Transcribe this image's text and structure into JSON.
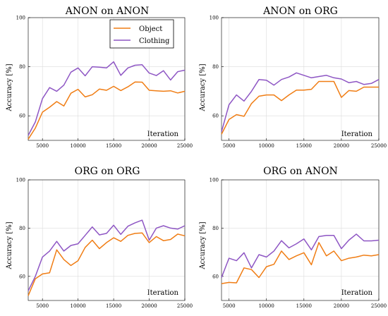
{
  "chart_data": [
    {
      "type": "line",
      "title": "ANON on ANON",
      "xlabel": "Iteration",
      "ylabel": "Accuracy [%]",
      "xlim": [
        3000,
        25000
      ],
      "ylim": [
        50,
        100
      ],
      "xticks": [
        5000,
        10000,
        15000,
        20000,
        25000
      ],
      "yticks": [
        60,
        80,
        100
      ],
      "grid": true,
      "legend": "top-right",
      "x": [
        3000,
        4000,
        5000,
        6000,
        7000,
        8000,
        9000,
        10000,
        11000,
        12000,
        13000,
        14000,
        15000,
        16000,
        17000,
        18000,
        19000,
        20000,
        21000,
        22000,
        23000,
        24000,
        25000
      ],
      "series": [
        {
          "name": "Object",
          "color": "#f07d14",
          "values": [
            50.5,
            55,
            61.5,
            63.5,
            65.8,
            64,
            69.2,
            70.8,
            67.7,
            68.6,
            70.9,
            70.4,
            72,
            70.3,
            71.8,
            73.8,
            73.7,
            70.4,
            70.2,
            70,
            70.2,
            69.3,
            70
          ]
        },
        {
          "name": "Clothing",
          "color": "#8e56c4",
          "values": [
            52,
            57.5,
            67,
            71.5,
            70,
            72.5,
            77.8,
            79.5,
            76.3,
            80,
            79.8,
            79.5,
            82,
            76.5,
            79.5,
            80.6,
            80.8,
            77.4,
            76.4,
            78.4,
            74.6,
            78,
            78.6
          ]
        }
      ]
    },
    {
      "type": "line",
      "title": "ANON on ORG",
      "xlabel": "Iteration",
      "ylabel": "Accuracy [%]",
      "xlim": [
        4000,
        25000
      ],
      "ylim": [
        50,
        100
      ],
      "xticks": [
        5000,
        10000,
        15000,
        20000,
        25000
      ],
      "yticks": [
        60,
        80,
        100
      ],
      "grid": true,
      "x": [
        4000,
        5000,
        6000,
        7000,
        8000,
        9000,
        10000,
        11000,
        12000,
        13000,
        14000,
        15000,
        16000,
        17000,
        18000,
        19000,
        20000,
        21000,
        22000,
        23000,
        24000,
        25000
      ],
      "series": [
        {
          "name": "Object",
          "color": "#f07d14",
          "values": [
            52.5,
            58.5,
            60.5,
            59.8,
            65,
            68,
            68.5,
            68.5,
            66.2,
            68.5,
            70.5,
            70.5,
            70.8,
            74,
            74,
            74,
            67.5,
            70.3,
            70,
            71.7,
            71.7,
            71.7
          ]
        },
        {
          "name": "Clothing",
          "color": "#8e56c4",
          "values": [
            53.5,
            64.5,
            68.5,
            66,
            70,
            74.8,
            74.5,
            72.5,
            74.8,
            75.8,
            77.5,
            76.5,
            75.5,
            76,
            76.5,
            75.5,
            75,
            73.5,
            74,
            72.8,
            73.2,
            74.8
          ]
        }
      ]
    },
    {
      "type": "line",
      "title": "ORG on ORG",
      "xlabel": "Iteration",
      "ylabel": "Accuracy [%]",
      "xlim": [
        3000,
        25000
      ],
      "ylim": [
        50,
        100
      ],
      "xticks": [
        5000,
        10000,
        15000,
        20000,
        25000
      ],
      "yticks": [
        60,
        80,
        100
      ],
      "grid": true,
      "x": [
        3000,
        4000,
        5000,
        6000,
        7000,
        8000,
        9000,
        10000,
        11000,
        12000,
        13000,
        14000,
        15000,
        16000,
        17000,
        18000,
        19000,
        20000,
        21000,
        22000,
        23000,
        24000,
        25000
      ],
      "series": [
        {
          "name": "Object",
          "color": "#f07d14",
          "values": [
            52,
            59,
            61,
            61.5,
            71,
            67,
            64.5,
            66.5,
            72,
            75,
            71.5,
            74,
            76,
            74.5,
            77,
            77.8,
            78,
            74,
            76.5,
            74.8,
            75.3,
            77.5,
            76.8
          ]
        },
        {
          "name": "Clothing",
          "color": "#8e56c4",
          "values": [
            54,
            60,
            68,
            70.5,
            74.5,
            70.5,
            72.8,
            73.5,
            77,
            80.5,
            77.2,
            77.8,
            81.2,
            77.4,
            80.8,
            82.2,
            83.3,
            75,
            80,
            81,
            80,
            79.6,
            81
          ]
        }
      ]
    },
    {
      "type": "line",
      "title": "ORG on ANON",
      "xlabel": "Iteration",
      "ylabel": "Accuracy [%]",
      "xlim": [
        4000,
        25000
      ],
      "ylim": [
        50,
        100
      ],
      "xticks": [
        5000,
        10000,
        15000,
        20000,
        25000
      ],
      "yticks": [
        60,
        80,
        100
      ],
      "grid": true,
      "x": [
        4000,
        5000,
        6000,
        7000,
        8000,
        9000,
        10000,
        11000,
        12000,
        13000,
        14000,
        15000,
        16000,
        17000,
        18000,
        19000,
        20000,
        21000,
        22000,
        23000,
        24000,
        25000
      ],
      "series": [
        {
          "name": "Object",
          "color": "#f07d14",
          "values": [
            57,
            57.5,
            57.3,
            63.5,
            62.8,
            59.5,
            64,
            65,
            70.5,
            67,
            68.5,
            69.8,
            64.8,
            74,
            68.5,
            70.5,
            66.5,
            67.5,
            68,
            68.8,
            68.5,
            69
          ]
        },
        {
          "name": "Clothing",
          "color": "#8e56c4",
          "values": [
            59.5,
            67.5,
            66.5,
            69.8,
            63.5,
            69,
            68,
            70.5,
            74.8,
            71.8,
            73.5,
            75.5,
            71,
            76.5,
            77,
            77,
            71.5,
            75,
            77.5,
            74.7,
            74.7,
            75
          ]
        }
      ]
    }
  ]
}
